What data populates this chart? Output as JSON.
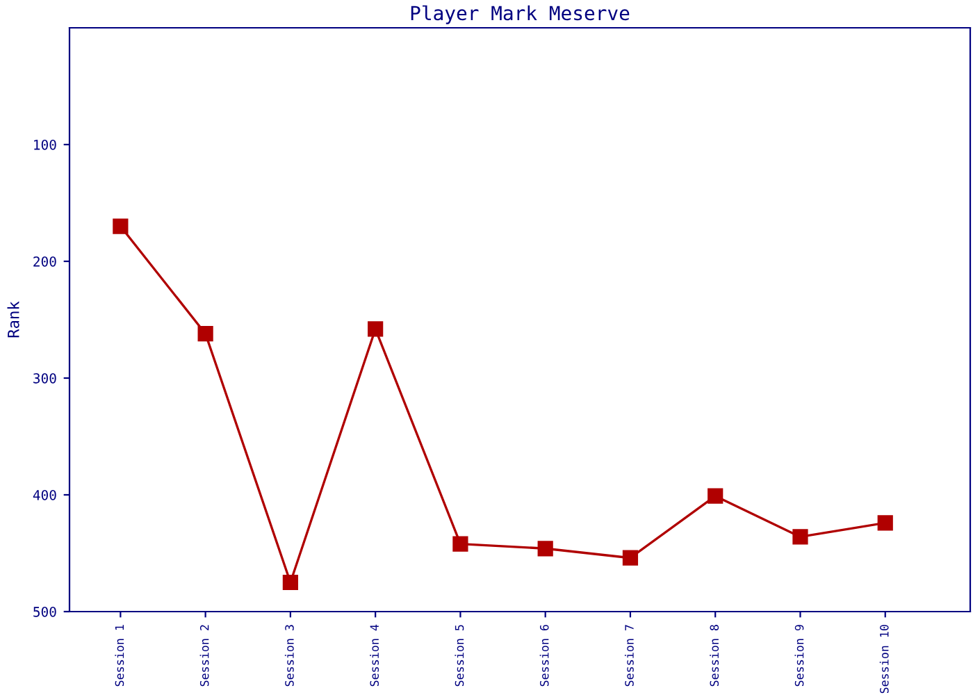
{
  "chart_data": {
    "type": "line",
    "title": "Player Mark Meserve",
    "ylabel": "Rank",
    "categories": [
      "Session 1",
      "Session 2",
      "Session 3",
      "Session 4",
      "Session 5",
      "Session 6",
      "Session 7",
      "Session 8",
      "Session 9",
      "Session 10"
    ],
    "series": [
      {
        "color": "#b00000",
        "values": [
          170,
          262,
          475,
          258,
          442,
          446,
          454,
          401,
          436,
          424
        ]
      }
    ],
    "ylim": [
      500,
      0
    ],
    "yticks": [
      100,
      200,
      300,
      400,
      500
    ],
    "marker": "square",
    "line_style": "solid",
    "grid": false,
    "legend": false
  }
}
